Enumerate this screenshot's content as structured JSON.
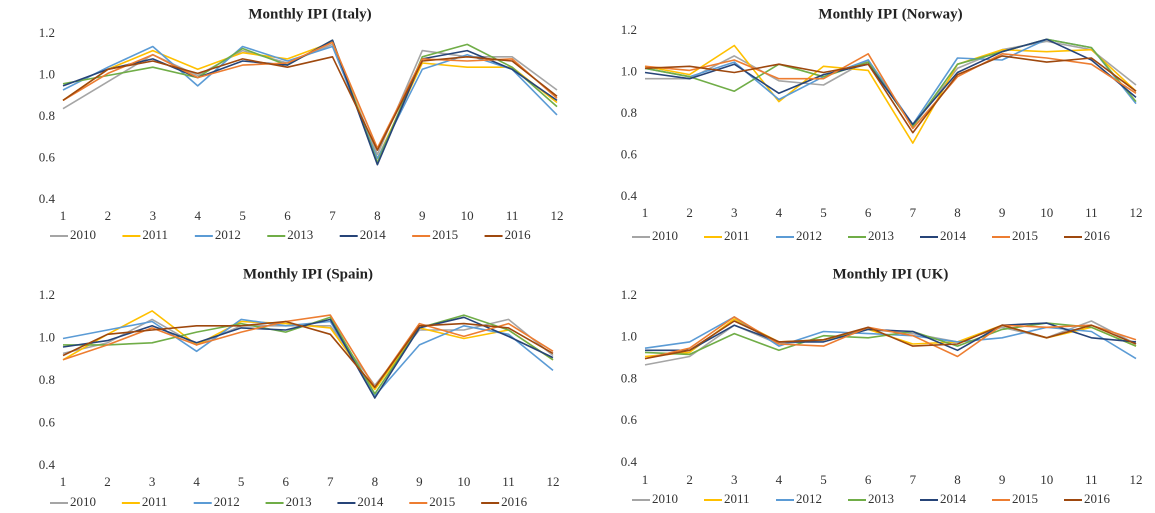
{
  "chart_data": [
    {
      "type": "line",
      "title": "Monthly IPI (Italy)",
      "categories": [
        "1",
        "2",
        "3",
        "4",
        "5",
        "6",
        "7",
        "8",
        "9",
        "10",
        "11",
        "12"
      ],
      "ylim": [
        0.4,
        1.2
      ],
      "yticks": [
        0.4,
        0.6,
        0.8,
        {
          "value": 1,
          "label": "1.0"
        },
        1.2
      ],
      "grid": false,
      "legend": "bottom",
      "series": [
        {
          "name": "2010",
          "color": "#a5a5a5",
          "values": [
            0.84,
            0.97,
            1.1,
            1.0,
            1.12,
            1.06,
            1.15,
            0.62,
            1.12,
            1.09,
            1.09,
            0.93
          ]
        },
        {
          "name": "2011",
          "color": "#ffc000",
          "values": [
            0.88,
            1.03,
            1.12,
            1.03,
            1.11,
            1.08,
            1.16,
            0.6,
            1.06,
            1.04,
            1.04,
            0.87
          ]
        },
        {
          "name": "2012",
          "color": "#5b9bd5",
          "values": [
            0.93,
            1.04,
            1.14,
            0.95,
            1.14,
            1.07,
            1.14,
            0.6,
            1.03,
            1.1,
            1.03,
            0.81
          ]
        },
        {
          "name": "2013",
          "color": "#70ad47",
          "values": [
            0.96,
            1.0,
            1.04,
            0.99,
            1.13,
            1.05,
            1.17,
            0.58,
            1.09,
            1.15,
            1.04,
            0.85
          ]
        },
        {
          "name": "2014",
          "color": "#264478",
          "values": [
            0.95,
            1.03,
            1.08,
            0.99,
            1.07,
            1.05,
            1.17,
            0.57,
            1.08,
            1.12,
            1.03,
            0.88
          ]
        },
        {
          "name": "2015",
          "color": "#ed7d31",
          "values": [
            0.88,
            1.01,
            1.1,
            0.99,
            1.05,
            1.06,
            1.16,
            0.65,
            1.08,
            1.07,
            1.08,
            0.89
          ]
        },
        {
          "name": "2016",
          "color": "#9e480e",
          "values": [
            0.88,
            1.03,
            1.07,
            1.01,
            1.08,
            1.04,
            1.09,
            0.64,
            1.07,
            1.09,
            1.07,
            0.9
          ]
        }
      ]
    },
    {
      "type": "line",
      "title": "Monthly IPI (Norway)",
      "categories": [
        "1",
        "2",
        "3",
        "4",
        "5",
        "6",
        "7",
        "8",
        "9",
        "10",
        "11",
        "12"
      ],
      "ylim": [
        0.4,
        1.2
      ],
      "yticks": [
        0.4,
        0.6,
        0.8,
        {
          "value": 1,
          "label": "1.0"
        },
        1.2
      ],
      "grid": false,
      "legend": "bottom",
      "series": [
        {
          "name": "2010",
          "color": "#a5a5a5",
          "values": [
            0.97,
            0.97,
            1.08,
            0.96,
            0.94,
            1.06,
            0.74,
            1.02,
            1.11,
            1.15,
            1.11,
            0.94
          ]
        },
        {
          "name": "2011",
          "color": "#ffc000",
          "values": [
            1.03,
            0.99,
            1.13,
            0.86,
            1.03,
            1.01,
            0.66,
            1.04,
            1.11,
            1.1,
            1.11,
            0.91
          ]
        },
        {
          "name": "2012",
          "color": "#5b9bd5",
          "values": [
            1.02,
            0.98,
            1.05,
            0.87,
            0.98,
            1.06,
            0.75,
            1.07,
            1.06,
            1.16,
            1.12,
            0.85
          ]
        },
        {
          "name": "2013",
          "color": "#70ad47",
          "values": [
            1.02,
            0.98,
            0.91,
            1.04,
            0.98,
            1.05,
            0.74,
            1.04,
            1.1,
            1.16,
            1.12,
            0.86
          ]
        },
        {
          "name": "2014",
          "color": "#264478",
          "values": [
            1.0,
            0.97,
            1.04,
            0.9,
            0.99,
            1.04,
            0.75,
            1.0,
            1.1,
            1.16,
            1.06,
            0.88
          ]
        },
        {
          "name": "2015",
          "color": "#ed7d31",
          "values": [
            1.03,
            1.01,
            1.06,
            0.97,
            0.97,
            1.09,
            0.73,
            0.98,
            1.09,
            1.07,
            1.04,
            0.9
          ]
        },
        {
          "name": "2016",
          "color": "#9e480e",
          "values": [
            1.02,
            1.03,
            1.0,
            1.04,
            1.0,
            1.04,
            0.71,
            0.99,
            1.08,
            1.05,
            1.07,
            0.91
          ]
        }
      ]
    },
    {
      "type": "line",
      "title": "Monthly IPI (Spain)",
      "categories": [
        "1",
        "2",
        "3",
        "4",
        "5",
        "6",
        "7",
        "8",
        "9",
        "10",
        "11",
        "12"
      ],
      "ylim": [
        0.4,
        1.2
      ],
      "yticks": [
        0.4,
        0.6,
        0.8,
        {
          "value": 1,
          "label": "1.0"
        },
        1.2
      ],
      "grid": false,
      "legend": "bottom",
      "series": [
        {
          "name": "2010",
          "color": "#a5a5a5",
          "values": [
            0.93,
            0.98,
            1.09,
            0.97,
            1.06,
            1.06,
            1.06,
            0.78,
            1.04,
            1.04,
            1.09,
            0.92
          ]
        },
        {
          "name": "2011",
          "color": "#ffc000",
          "values": [
            0.9,
            1.02,
            1.13,
            0.97,
            1.08,
            1.07,
            1.05,
            0.76,
            1.05,
            1.0,
            1.04,
            0.9
          ]
        },
        {
          "name": "2012",
          "color": "#5b9bd5",
          "values": [
            1.0,
            1.04,
            1.08,
            0.94,
            1.09,
            1.06,
            1.08,
            0.73,
            0.97,
            1.06,
            1.02,
            0.85
          ]
        },
        {
          "name": "2013",
          "color": "#70ad47",
          "values": [
            0.97,
            0.97,
            0.98,
            1.03,
            1.07,
            1.03,
            1.1,
            0.74,
            1.05,
            1.11,
            1.04,
            0.9
          ]
        },
        {
          "name": "2014",
          "color": "#264478",
          "values": [
            0.96,
            0.99,
            1.06,
            0.98,
            1.05,
            1.04,
            1.09,
            0.72,
            1.05,
            1.1,
            1.01,
            0.91
          ]
        },
        {
          "name": "2015",
          "color": "#ed7d31",
          "values": [
            0.9,
            0.97,
            1.05,
            0.97,
            1.03,
            1.08,
            1.11,
            0.77,
            1.07,
            1.01,
            1.07,
            0.94
          ]
        },
        {
          "name": "2016",
          "color": "#9e480e",
          "values": [
            0.92,
            1.02,
            1.04,
            1.06,
            1.06,
            1.08,
            1.02,
            0.77,
            1.06,
            1.07,
            1.05,
            0.93
          ]
        }
      ]
    },
    {
      "type": "line",
      "title": "Monthly IPI (UK)",
      "categories": [
        "1",
        "2",
        "3",
        "4",
        "5",
        "6",
        "7",
        "8",
        "9",
        "10",
        "11",
        "12"
      ],
      "ylim": [
        0.4,
        1.2
      ],
      "yticks": [
        0.4,
        0.6,
        0.8,
        {
          "value": 1,
          "label": "1.0"
        },
        1.2
      ],
      "grid": false,
      "legend": "bottom",
      "series": [
        {
          "name": "2010",
          "color": "#a5a5a5",
          "values": [
            0.87,
            0.91,
            1.06,
            0.97,
            0.99,
            1.04,
            1.02,
            0.98,
            1.05,
            1.0,
            1.08,
            0.97
          ]
        },
        {
          "name": "2011",
          "color": "#ffc000",
          "values": [
            0.91,
            0.93,
            1.09,
            0.98,
            0.99,
            1.04,
            0.97,
            0.98,
            1.06,
            1.0,
            1.05,
            0.96
          ]
        },
        {
          "name": "2012",
          "color": "#5b9bd5",
          "values": [
            0.95,
            0.98,
            1.1,
            0.96,
            1.03,
            1.02,
            1.01,
            0.98,
            1.0,
            1.05,
            1.03,
            0.9
          ]
        },
        {
          "name": "2013",
          "color": "#70ad47",
          "values": [
            0.93,
            0.92,
            1.02,
            0.94,
            1.01,
            1.0,
            1.03,
            0.96,
            1.04,
            1.07,
            1.05,
            0.96
          ]
        },
        {
          "name": "2014",
          "color": "#264478",
          "values": [
            0.94,
            0.94,
            1.06,
            0.98,
            0.98,
            1.04,
            1.03,
            0.94,
            1.06,
            1.07,
            1.0,
            0.98
          ]
        },
        {
          "name": "2015",
          "color": "#ed7d31",
          "values": [
            0.9,
            0.95,
            1.1,
            0.97,
            0.96,
            1.05,
            1.01,
            0.91,
            1.06,
            1.05,
            1.06,
            0.99
          ]
        },
        {
          "name": "2016",
          "color": "#9e480e",
          "values": [
            0.9,
            0.94,
            1.08,
            0.98,
            0.99,
            1.05,
            0.96,
            0.97,
            1.06,
            1.0,
            1.06,
            0.97
          ]
        }
      ]
    }
  ]
}
